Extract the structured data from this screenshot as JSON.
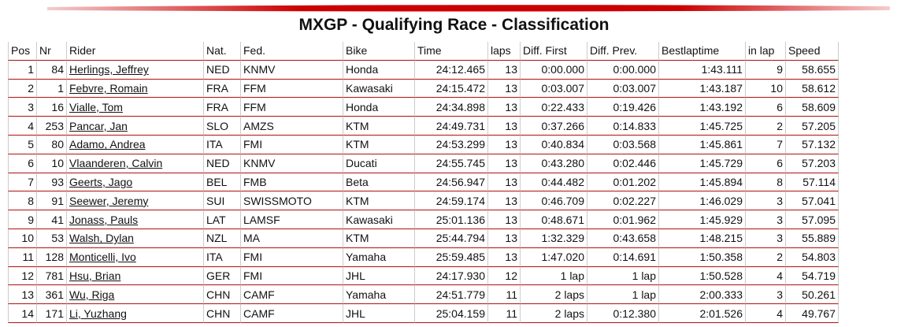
{
  "header": {
    "title": "MXGP - Qualifying Race - Classification"
  },
  "table": {
    "columns": [
      "Pos",
      "Nr",
      "Rider",
      "Nat.",
      "Fed.",
      "Bike",
      "Time",
      "laps",
      "Diff. First",
      "Diff. Prev.",
      "Bestlaptime",
      "in lap",
      "Speed"
    ],
    "rows": [
      [
        "1",
        "84",
        "Herlings, Jeffrey",
        "NED",
        "KNMV",
        "Honda",
        "24:12.465",
        "13",
        "0:00.000",
        "0:00.000",
        "1:43.111",
        "9",
        "58.655"
      ],
      [
        "2",
        "1",
        "Febvre, Romain",
        "FRA",
        "FFM",
        "Kawasaki",
        "24:15.472",
        "13",
        "0:03.007",
        "0:03.007",
        "1:43.187",
        "10",
        "58.612"
      ],
      [
        "3",
        "16",
        "Vialle, Tom",
        "FRA",
        "FFM",
        "Honda",
        "24:34.898",
        "13",
        "0:22.433",
        "0:19.426",
        "1:43.192",
        "6",
        "58.609"
      ],
      [
        "4",
        "253",
        "Pancar, Jan",
        "SLO",
        "AMZS",
        "KTM",
        "24:49.731",
        "13",
        "0:37.266",
        "0:14.833",
        "1:45.725",
        "2",
        "57.205"
      ],
      [
        "5",
        "80",
        "Adamo, Andrea",
        "ITA",
        "FMI",
        "KTM",
        "24:53.299",
        "13",
        "0:40.834",
        "0:03.568",
        "1:45.861",
        "7",
        "57.132"
      ],
      [
        "6",
        "10",
        "Vlaanderen, Calvin",
        "NED",
        "KNMV",
        "Ducati",
        "24:55.745",
        "13",
        "0:43.280",
        "0:02.446",
        "1:45.729",
        "6",
        "57.203"
      ],
      [
        "7",
        "93",
        "Geerts, Jago",
        "BEL",
        "FMB",
        "Beta",
        "24:56.947",
        "13",
        "0:44.482",
        "0:01.202",
        "1:45.894",
        "8",
        "57.114"
      ],
      [
        "8",
        "91",
        "Seewer, Jeremy",
        "SUI",
        "SWISSMOTO",
        "KTM",
        "24:59.174",
        "13",
        "0:46.709",
        "0:02.227",
        "1:46.029",
        "3",
        "57.041"
      ],
      [
        "9",
        "41",
        "Jonass, Pauls",
        "LAT",
        "LAMSF",
        "Kawasaki",
        "25:01.136",
        "13",
        "0:48.671",
        "0:01.962",
        "1:45.929",
        "3",
        "57.095"
      ],
      [
        "10",
        "53",
        "Walsh, Dylan",
        "NZL",
        "MA",
        "KTM",
        "25:44.794",
        "13",
        "1:32.329",
        "0:43.658",
        "1:48.215",
        "3",
        "55.889"
      ],
      [
        "11",
        "128",
        "Monticelli, Ivo",
        "ITA",
        "FMI",
        "Yamaha",
        "25:59.485",
        "13",
        "1:47.020",
        "0:14.691",
        "1:50.358",
        "2",
        "54.803"
      ],
      [
        "12",
        "781",
        "Hsu, Brian",
        "GER",
        "FMI",
        "JHL",
        "24:17.930",
        "12",
        "1 lap",
        "1 lap",
        "1:50.528",
        "4",
        "54.719"
      ],
      [
        "13",
        "361",
        "Wu, Riga",
        "CHN",
        "CAMF",
        "Yamaha",
        "24:51.779",
        "11",
        "2 laps",
        "1 lap",
        "2:00.333",
        "3",
        "50.261"
      ],
      [
        "14",
        "171",
        "Li, Yuzhang",
        "CHN",
        "CAMF",
        "JHL",
        "25:04.159",
        "11",
        "2 laps",
        "0:12.380",
        "2:01.526",
        "4",
        "49.767"
      ]
    ]
  }
}
